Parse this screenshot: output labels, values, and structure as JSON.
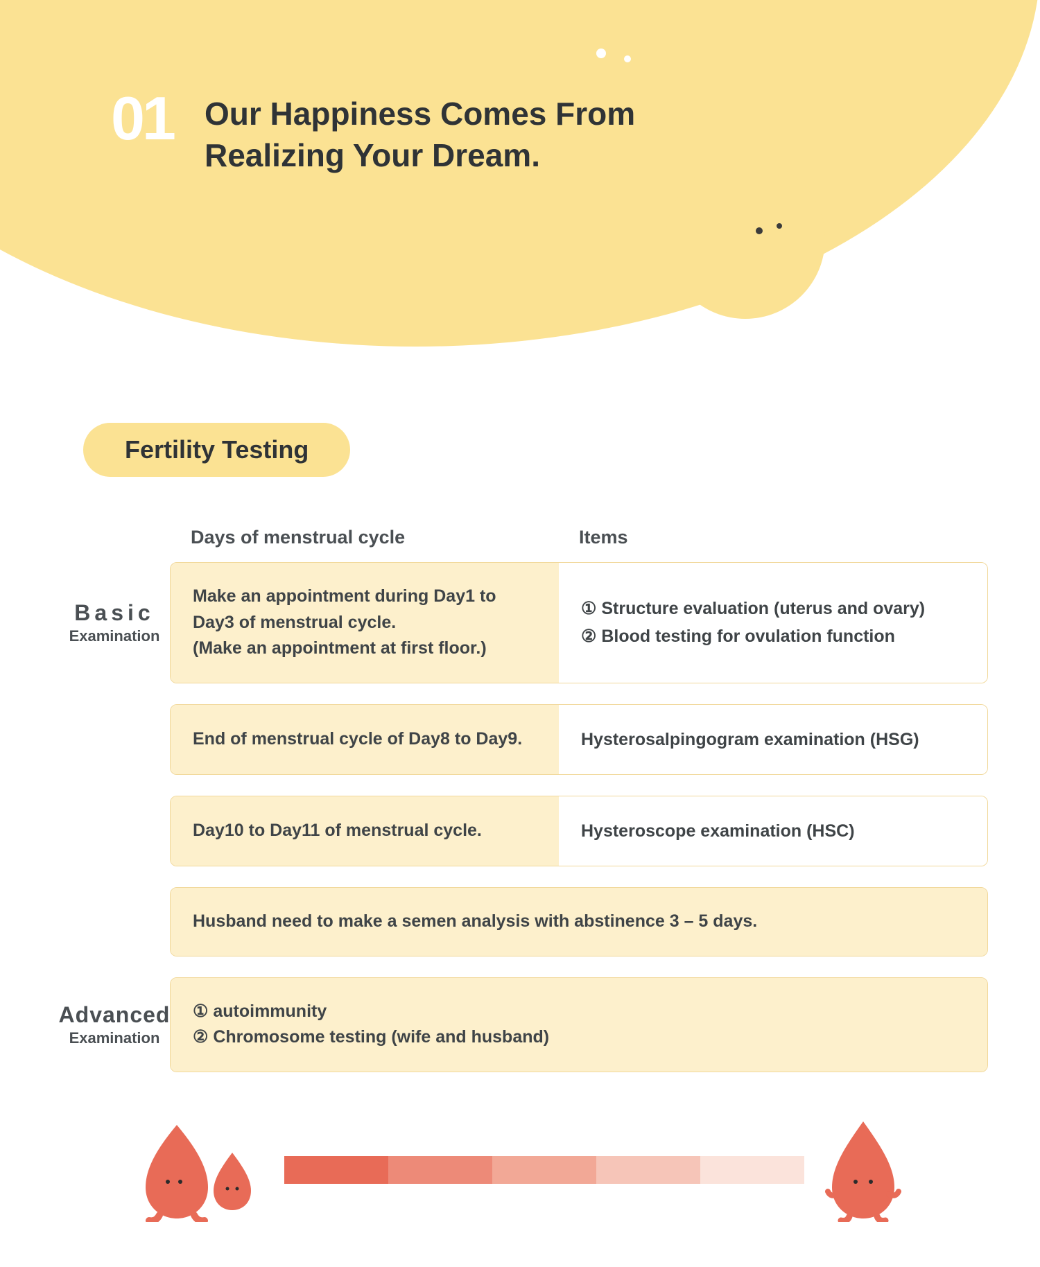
{
  "colors": {
    "swoosh": "#fbe293",
    "pill": "#fbe293",
    "card_left_bg": "#fdf0cc",
    "card_right_bg": "#ffffff",
    "card_border": "#f1d89a",
    "text_dark": "#2f3336",
    "text_body": "#3f4447",
    "drop_fill": "#e86b57",
    "progress_colors": [
      "#e86b57",
      "#ed8a78",
      "#f2a896",
      "#f6c5b8",
      "#fbe3db"
    ]
  },
  "hero": {
    "number": "01",
    "title_line1": "Our Happiness Comes From",
    "title_line2": "Realizing Your Dream."
  },
  "section_pill": "Fertility Testing",
  "table": {
    "header_col1": "Days of menstrual cycle",
    "header_col2": "Items",
    "labels": {
      "basic_big": "Basic",
      "basic_small": "Examination",
      "advanced_big": "Advanced",
      "advanced_small": "Examination"
    },
    "rows": [
      {
        "type": "two",
        "side": "basic",
        "left": "Make an appointment during Day1 to Day3 of menstrual cycle.\n(Make an appointment at first floor.)",
        "right": "① Structure evaluation (uterus and ovary)\n② Blood testing for ovulation  function"
      },
      {
        "type": "two",
        "side": "",
        "left": "End of menstrual cycle of Day8 to Day9.",
        "right": "Hysterosalpingogram examination (HSG)"
      },
      {
        "type": "two",
        "side": "",
        "left": "Day10 to Day11 of menstrual cycle.",
        "right": "Hysteroscope examination (HSC)"
      },
      {
        "type": "full",
        "side": "",
        "left": "Husband need to make a semen analysis with abstinence 3 – 5 days.",
        "right": ""
      },
      {
        "type": "full",
        "side": "advanced",
        "left": "① autoimmunity\n② Chromosome testing (wife and husband)",
        "right": ""
      }
    ]
  },
  "footer": {
    "segments": 5
  }
}
